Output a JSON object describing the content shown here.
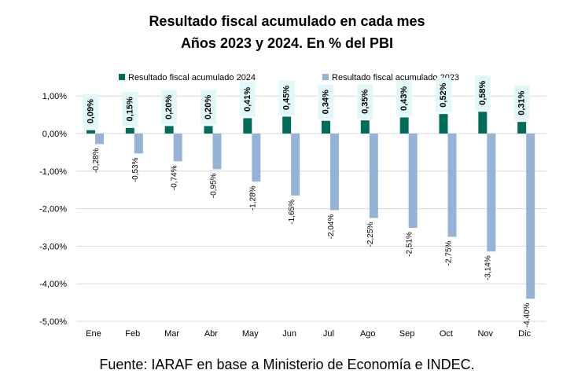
{
  "chart_data": {
    "type": "bar",
    "title": "Resultado fiscal acumulado en cada mes",
    "subtitle": "Años 2023 y 2024. En % del PBI",
    "xlabel": "",
    "ylabel": "",
    "categories": [
      "Ene",
      "Feb",
      "Mar",
      "Abr",
      "May",
      "Jun",
      "Jul",
      "Ago",
      "Sep",
      "Oct",
      "Nov",
      "Dic"
    ],
    "series": [
      {
        "name": "Resultado fiscal acumulado 2024",
        "color": "#006D5B",
        "values": [
          0.09,
          0.15,
          0.2,
          0.2,
          0.41,
          0.45,
          0.34,
          0.35,
          0.43,
          0.52,
          0.58,
          0.31
        ],
        "data_labels": [
          "0,09%",
          "0,15%",
          "0,20%",
          "0,20%",
          "0,41%",
          "0,45%",
          "0,34%",
          "0,35%",
          "0,43%",
          "0,52%",
          "0,58%",
          "0,31%"
        ]
      },
      {
        "name": "Resultado fiscal acumulado 2023",
        "color": "#95B3D7",
        "values": [
          -0.28,
          -0.53,
          -0.74,
          -0.95,
          -1.28,
          -1.65,
          -2.04,
          -2.25,
          -2.51,
          -2.75,
          -3.14,
          -4.4
        ],
        "data_labels": [
          "-0,28%",
          "-0,53%",
          "-0,74%",
          "-0,95%",
          "-1,28%",
          "-1,65%",
          "-2,04%",
          "-2,25%",
          "-2,51%",
          "-2,75%",
          "-3,14%",
          "-4,40%"
        ]
      }
    ],
    "ylim": [
      -5,
      1.2
    ],
    "yticks": [
      1,
      0,
      -1,
      -2,
      -3,
      -4,
      -5
    ],
    "ytick_labels": [
      "1,00%",
      "0,00%",
      "-1,00%",
      "-2,00%",
      "-3,00%",
      "-4,00%",
      "-5,00%"
    ],
    "grid": true,
    "legend_position": "top",
    "label_highlight_color": "#E2F7F7",
    "source": "Fuente: IARAF en base a Ministerio de Economía e INDEC."
  }
}
